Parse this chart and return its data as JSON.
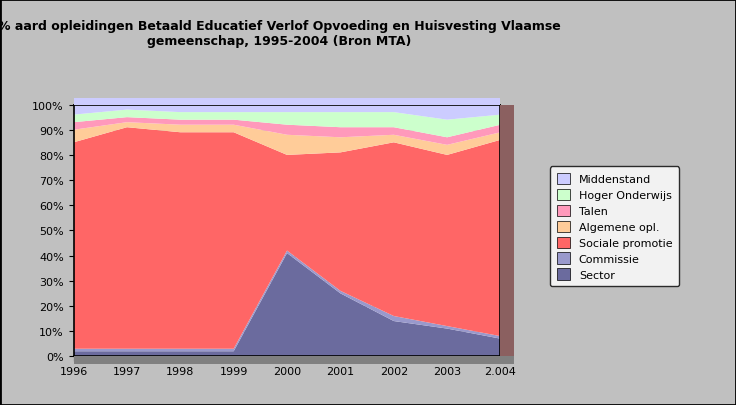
{
  "title": "% aard opleidingen Betaald Educatief Verlof Opvoeding en Huisvesting Vlaamse\ngemeenschap, 1995-2004 (Bron MTA)",
  "years": [
    1996,
    1997,
    1998,
    1999,
    2000,
    2001,
    2002,
    2003,
    2004
  ],
  "year_labels": [
    "1996",
    "1997",
    "1998",
    "1999",
    "2000",
    "2001",
    "2002",
    "2003",
    "2.004"
  ],
  "series": {
    "Sector": [
      2,
      2,
      2,
      2,
      41,
      25,
      14,
      11,
      7
    ],
    "Commissie": [
      1,
      1,
      1,
      1,
      1,
      1,
      2,
      1,
      1
    ],
    "Sociale promotie": [
      82,
      88,
      86,
      86,
      38,
      55,
      69,
      68,
      78
    ],
    "Algemene opl.": [
      5,
      2,
      3,
      3,
      8,
      6,
      3,
      4,
      3
    ],
    "Talen": [
      3,
      2,
      2,
      2,
      4,
      4,
      3,
      3,
      3
    ],
    "Hoger Onderwijs": [
      3,
      3,
      3,
      3,
      5,
      6,
      6,
      7,
      4
    ],
    "Middenstand": [
      4,
      2,
      3,
      3,
      3,
      3,
      3,
      6,
      4
    ]
  },
  "colors": {
    "Sector": "#6B6B9E",
    "Commissie": "#9999CC",
    "Sociale promotie": "#FF6666",
    "Algemene opl.": "#FFCC99",
    "Talen": "#FF99BB",
    "Hoger Onderwijs": "#CCFFCC",
    "Middenstand": "#CCCCFF"
  },
  "legend_order": [
    "Middenstand",
    "Hoger Onderwijs",
    "Talen",
    "Algemene opl.",
    "Sociale promotie",
    "Commissie",
    "Sector"
  ],
  "background_color": "#C0C0C0",
  "plot_background": "#FFFFFF",
  "ylim": [
    0,
    100
  ],
  "wall_color_right": "#8B6060",
  "wall_color_bottom": "#808080"
}
